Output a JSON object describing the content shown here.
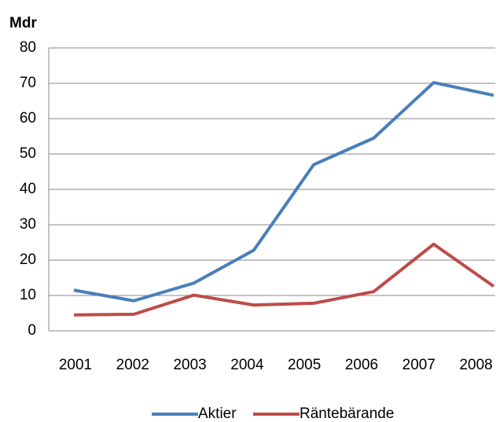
{
  "chart_data": {
    "type": "line",
    "y_axis_label": "Mdr",
    "categories": [
      "2001",
      "2002",
      "2003",
      "2004",
      "2005",
      "2006",
      "2007",
      "2008"
    ],
    "series": [
      {
        "name": "Aktier",
        "color": "#4a7ebb",
        "values": [
          11.5,
          8.5,
          13.5,
          22.8,
          47,
          54.5,
          70.2,
          66.6
        ]
      },
      {
        "name": "Räntebärande",
        "color": "#be4b48",
        "values": [
          4.5,
          4.7,
          10.1,
          7.3,
          7.8,
          11.1,
          24.5,
          12.6
        ]
      }
    ],
    "ylim": [
      0,
      80
    ],
    "yticks": [
      0,
      10,
      20,
      30,
      40,
      50,
      60,
      70,
      80
    ],
    "grid": true,
    "legend": "bottom"
  }
}
